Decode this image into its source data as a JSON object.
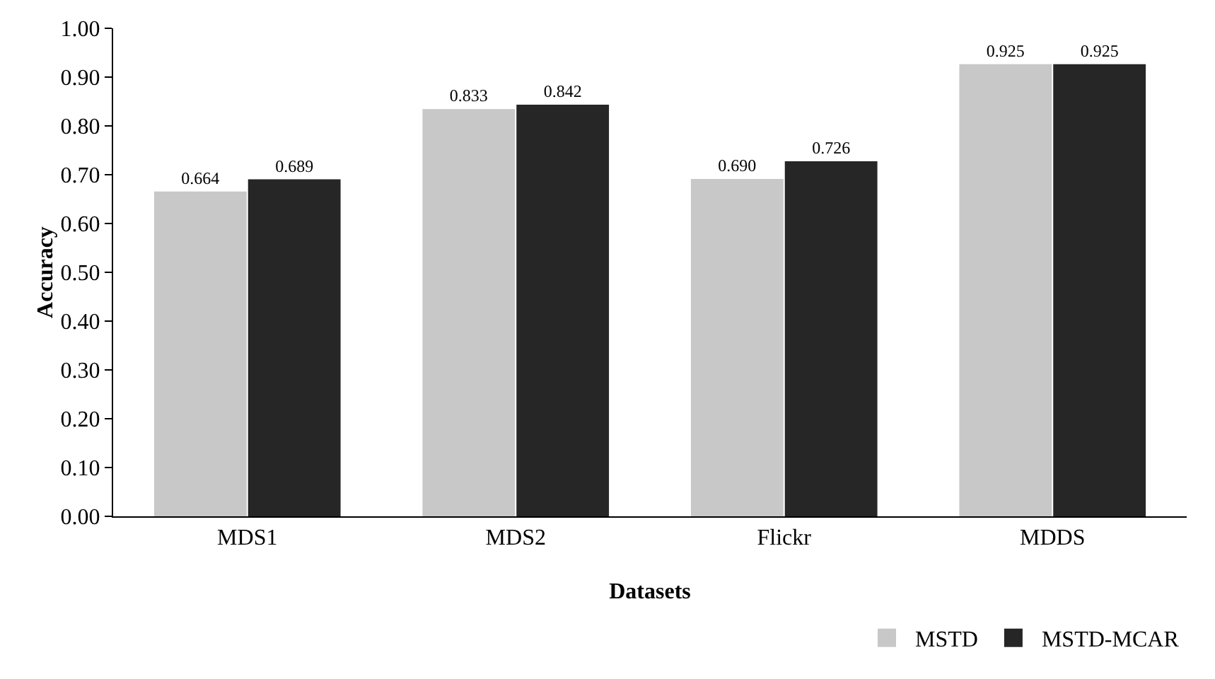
{
  "chart_data": {
    "type": "bar",
    "xlabel": "Datasets",
    "ylabel": "Accuracy",
    "categories": [
      "MDS1",
      "MDS2",
      "Flickr",
      "MDDS"
    ],
    "series": [
      {
        "name": "MSTD",
        "color": "#c8c8c8",
        "values": [
          0.664,
          0.833,
          0.69,
          0.925
        ]
      },
      {
        "name": "MSTD-MCAR",
        "color": "#262626",
        "values": [
          0.689,
          0.842,
          0.726,
          0.925
        ]
      }
    ],
    "ylim": [
      0,
      1
    ],
    "yticks": [
      {
        "value": 0,
        "label": "0.00"
      },
      {
        "value": 0.1,
        "label": "0.10"
      },
      {
        "value": 0.2,
        "label": "0.20"
      },
      {
        "value": 0.3,
        "label": "0.30"
      },
      {
        "value": 0.4,
        "label": "0.40"
      },
      {
        "value": 0.5,
        "label": "0.50"
      },
      {
        "value": 0.6,
        "label": "0.60"
      },
      {
        "value": 0.7,
        "label": "0.70"
      },
      {
        "value": 0.8,
        "label": "0.80"
      },
      {
        "value": 0.9,
        "label": "0.90"
      },
      {
        "value": 1,
        "label": "1.00"
      }
    ],
    "value_labels": [
      [
        "0.664",
        "0.833",
        "0.690",
        "0.925"
      ],
      [
        "0.689",
        "0.842",
        "0.726",
        "0.925"
      ]
    ],
    "grid": false,
    "legend": "bottom right"
  }
}
